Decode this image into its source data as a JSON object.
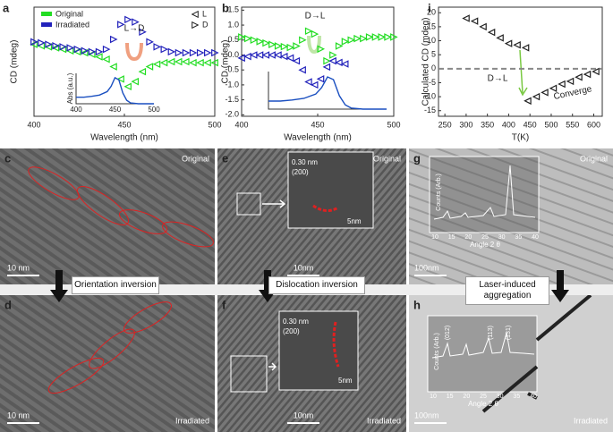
{
  "chart_data": [
    {
      "type": "scatter",
      "panel": "a",
      "xlabel": "Wavelength (nm)",
      "ylabel": "CD (mdeg)",
      "xlim": [
        400,
        500
      ],
      "xticks": [
        400,
        450,
        500
      ],
      "ylim": [
        -1.2,
        1.0
      ],
      "x": [
        400,
        404,
        408,
        412,
        416,
        420,
        424,
        428,
        432,
        436,
        440,
        444,
        448,
        452,
        456,
        460,
        464,
        468,
        472,
        476,
        480,
        484,
        488,
        492,
        496,
        500
      ],
      "series": [
        {
          "name": "Original",
          "color": "#22dd22",
          "marker": "left",
          "values": [
            0.25,
            0.22,
            0.2,
            0.18,
            0.15,
            0.12,
            0.1,
            0.08,
            0.05,
            0.0,
            -0.05,
            -0.2,
            -0.45,
            -0.6,
            -0.5,
            -0.3,
            -0.2,
            -0.15,
            -0.12,
            -0.1,
            -0.1,
            -0.1,
            -0.12,
            -0.12,
            -0.12,
            -0.12
          ]
        },
        {
          "name": "Irradiated",
          "color": "#2222bb",
          "marker": "right",
          "values": [
            0.3,
            0.28,
            0.25,
            0.22,
            0.2,
            0.18,
            0.15,
            0.12,
            0.1,
            0.1,
            0.15,
            0.35,
            0.65,
            0.75,
            0.7,
            0.5,
            0.3,
            0.2,
            0.15,
            0.1,
            0.08,
            0.08,
            0.08,
            0.08,
            0.08,
            0.08
          ]
        }
      ],
      "marker_legend": [
        "L",
        "D"
      ],
      "annotation": "L→D",
      "annotation_color": "#e8744a",
      "inset": {
        "xlim": [
          400,
          500
        ],
        "xticks": [
          400,
          450,
          500
        ],
        "ylabel": "Abs (a.u.)",
        "ylim": [
          0,
          0.7
        ],
        "color": "#1a4fc0",
        "x": [
          400,
          410,
          420,
          430,
          440,
          445,
          450,
          455,
          460,
          465,
          470,
          480,
          490,
          500
        ],
        "values": [
          0.15,
          0.15,
          0.17,
          0.2,
          0.28,
          0.4,
          0.6,
          0.55,
          0.25,
          0.08,
          0.02,
          0,
          0,
          0
        ]
      }
    },
    {
      "type": "scatter",
      "panel": "b",
      "xlabel": "Wavelength (nm)",
      "ylabel": "CD (mdeg)",
      "xlim": [
        400,
        500
      ],
      "xticks": [
        400,
        450,
        500
      ],
      "ylim": [
        -2.05,
        1.6
      ],
      "yticks": [
        {
          "value": -2,
          "label": "-2.0"
        },
        -1.5,
        {
          "value": -1,
          "label": "-1.0"
        },
        -0.5,
        {
          "value": 0,
          "label": "0.0"
        },
        0.5,
        {
          "value": 1,
          "label": "1.0"
        },
        1.5
      ],
      "x": [
        400,
        404,
        408,
        412,
        416,
        420,
        424,
        428,
        432,
        436,
        440,
        444,
        448,
        452,
        456,
        460,
        464,
        468,
        472,
        476,
        480,
        484,
        488,
        492,
        496,
        500
      ],
      "series": [
        {
          "name": "Original",
          "color": "#22dd22",
          "marker": "right",
          "values": [
            0.6,
            0.55,
            0.5,
            0.45,
            0.4,
            0.35,
            0.3,
            0.28,
            0.25,
            0.3,
            0.5,
            0.8,
            0.7,
            0.2,
            -0.2,
            0.0,
            0.3,
            0.45,
            0.5,
            0.55,
            0.55,
            0.6,
            0.6,
            0.6,
            0.6,
            0.6
          ]
        },
        {
          "name": "Irradiated",
          "color": "#2222bb",
          "marker": "left",
          "values": [
            -0.1,
            -0.05,
            0,
            0,
            0,
            0,
            0,
            -0.05,
            -0.1,
            -0.2,
            -0.5,
            -0.9,
            -1.0,
            -0.8,
            -0.4,
            -0.2,
            -0.25,
            -0.3,
            null,
            null,
            null,
            null,
            null,
            null,
            null,
            null
          ]
        }
      ],
      "annotation": "D→L",
      "annotation_color": "#7ac943",
      "inset": {
        "xlim": [
          400,
          500
        ],
        "ylim": [
          0,
          0.7
        ],
        "color": "#1a4fc0",
        "x": [
          400,
          410,
          420,
          430,
          440,
          445,
          450,
          455,
          460,
          465,
          470,
          480,
          490,
          500
        ],
        "values": [
          0.15,
          0.15,
          0.17,
          0.2,
          0.28,
          0.4,
          0.6,
          0.55,
          0.25,
          0.08,
          0.02,
          0,
          0,
          0
        ]
      }
    },
    {
      "type": "scatter",
      "panel": "i",
      "xlabel": "T(K)",
      "ylabel": "Calculated CD (mdeg)",
      "xlim": [
        235,
        620
      ],
      "xticks": [
        250,
        300,
        350,
        400,
        450,
        500,
        550,
        600
      ],
      "ylim": [
        -17,
        22
      ],
      "yticks": [
        -15,
        -10,
        -5,
        0,
        5,
        10,
        15,
        20
      ],
      "color": "#222222",
      "marker": "left",
      "x": [
        300,
        320,
        340,
        360,
        380,
        400,
        420,
        440,
        445,
        465,
        485,
        505,
        525,
        545,
        565,
        585,
        605
      ],
      "values": [
        18,
        17,
        15,
        13,
        11,
        9,
        8.5,
        7.5,
        -11.5,
        -10,
        -8.5,
        -7,
        -5.5,
        -4.5,
        -3,
        -2,
        -1
      ],
      "hline": 0,
      "hline_color": "#888888",
      "annotations": [
        "D→L",
        "Converge"
      ],
      "annotation_colors": [
        "#7ac943",
        "#999999"
      ]
    }
  ],
  "panels": [
    {
      "panel": "c",
      "label": "Original",
      "scale_bar": "10 nm"
    },
    {
      "panel": "d",
      "label": "Irradiated",
      "scale_bar": "10 nm"
    },
    {
      "panel": "e",
      "label": "Original",
      "scale_bar": "10nm",
      "inset_texts": [
        "0.30 nm",
        "(200)",
        "5nm"
      ]
    },
    {
      "panel": "f",
      "label": "Irradiated",
      "scale_bar": "10nm",
      "inset_texts": [
        "0.30 nm",
        "(200)",
        "5nm"
      ]
    },
    {
      "panel": "g",
      "label": "Original",
      "scale_bar": "100nm",
      "xlim": [
        10,
        40
      ],
      "xticks": [
        10,
        15,
        20,
        25,
        30,
        35,
        40
      ],
      "xlabel": "Angle 2 θ",
      "ylabel": "Counts (Arb.)"
    },
    {
      "panel": "h",
      "label": "Irradiated",
      "scale_bar": "100nm",
      "xlim": [
        10,
        40
      ],
      "xticks": [
        10,
        15,
        20,
        25,
        30,
        35,
        40
      ],
      "xlabel": "Angle 2 θ",
      "ylabel": "Counts (Arb.)",
      "peaks": [
        "(012)",
        "(113)",
        "(131)"
      ]
    }
  ],
  "transitions": [
    "Orientation inversion",
    "Dislocation inversion",
    "Laser-induced aggregation"
  ]
}
